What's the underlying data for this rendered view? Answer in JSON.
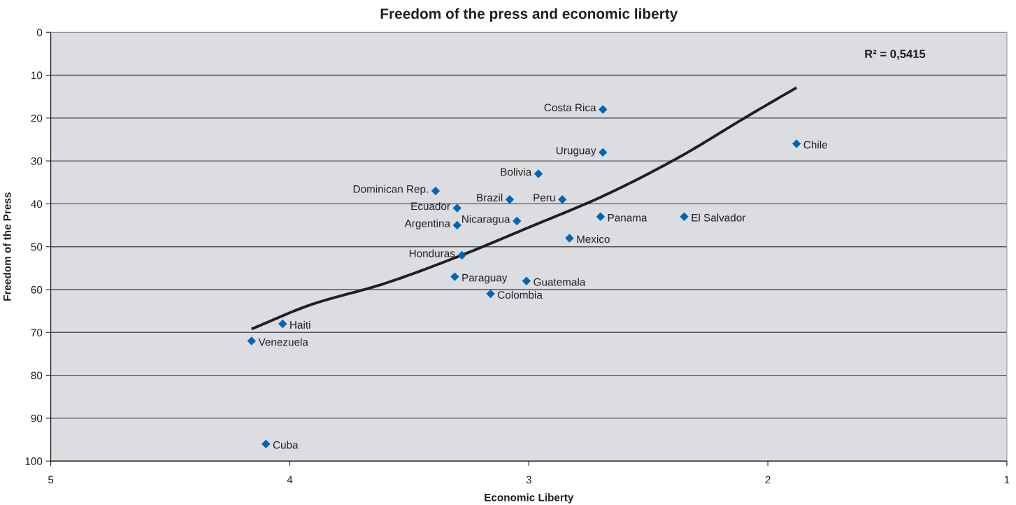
{
  "chart_data": {
    "type": "scatter",
    "title": "Freedom of the press and economic liberty",
    "xlabel": "Economic Liberty",
    "ylabel": "Freedom of the Press",
    "xlim": [
      5,
      1
    ],
    "xticks": [
      5,
      4,
      3,
      2,
      1
    ],
    "ylim": [
      100,
      0
    ],
    "yticks": [
      0,
      10,
      20,
      30,
      40,
      50,
      60,
      70,
      80,
      90,
      100
    ],
    "grid": "y",
    "marker": "diamond",
    "series": [
      {
        "type": "scatter",
        "color": "#0066b3",
        "x": [
          2.69,
          1.88,
          2.69,
          2.96,
          3.39,
          3.08,
          2.86,
          3.3,
          2.7,
          2.35,
          3.05,
          3.3,
          2.83,
          3.28,
          3.31,
          3.01,
          3.16,
          4.03,
          4.16,
          4.1
        ],
        "values": [
          18,
          26,
          28,
          33,
          37,
          39,
          39,
          41,
          43,
          43,
          44,
          45,
          48,
          52,
          57,
          58,
          61,
          68,
          72,
          96
        ],
        "value_labels": [
          "Costa Rica",
          "Chile",
          "Uruguay",
          "Bolivia",
          "Dominican Rep.",
          "Brazil",
          "Peru",
          "Ecuador",
          "Panama",
          "El Salvador",
          "Nicaragua",
          "Argentina",
          "Mexico",
          "Honduras",
          "Paraguay",
          "Guatemala",
          "Colombia",
          "Haiti",
          "Venezuela",
          "Cuba"
        ]
      },
      {
        "type": "line",
        "color": "#231f20",
        "marker": "none",
        "x": [
          4.16,
          3.91,
          3.61,
          3.3,
          3.0,
          2.69,
          2.38,
          2.08,
          1.88
        ],
        "values": [
          69.2,
          63.5,
          58.7,
          52.4,
          45.5,
          38.2,
          29.4,
          19.4,
          12.9
        ]
      }
    ],
    "annotations": [
      "R² = 0,5415"
    ]
  }
}
